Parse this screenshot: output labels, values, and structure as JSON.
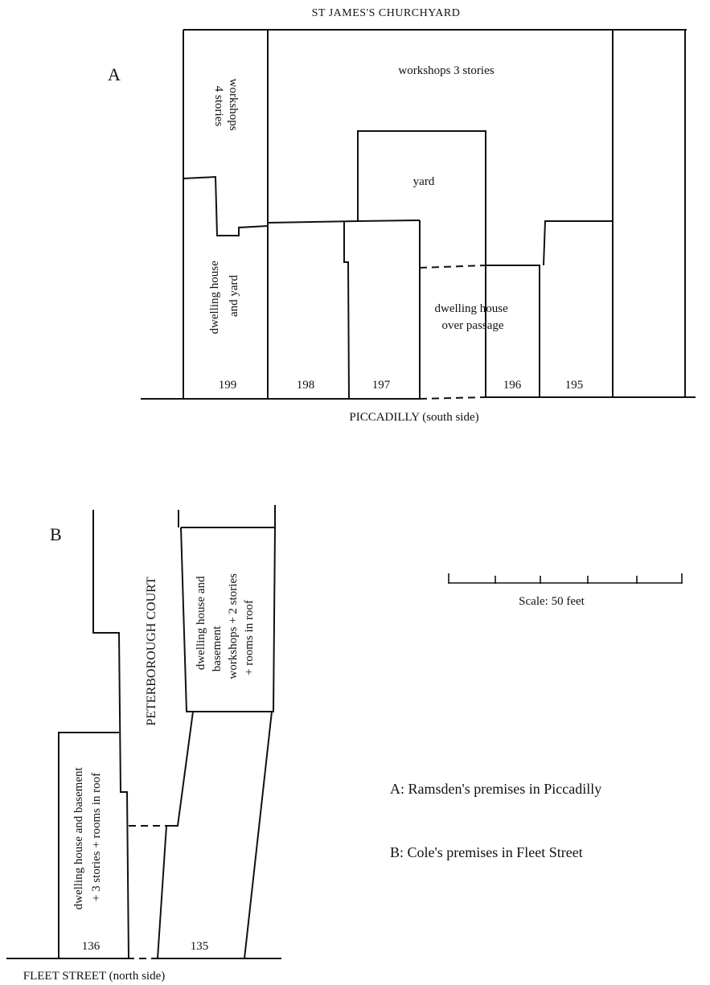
{
  "plan_a": {
    "panel_letter": "A",
    "north_street": "ST JAMES'S CHURCHYARD",
    "south_street": "PICCADILLY (south side)",
    "workshops_4": [
      "workshops",
      "4 stories"
    ],
    "workshops_3": "workshops 3 stories",
    "yard": "yard",
    "dwelling_and_yard": [
      "dwelling house",
      "and yard"
    ],
    "dwelling_over_passage": [
      "dwelling house",
      "over passage"
    ],
    "numbers": [
      "199",
      "198",
      "197",
      "196",
      "195"
    ]
  },
  "plan_b": {
    "panel_letter": "B",
    "court": "PETERBOROUGH COURT",
    "street": "FLEET STREET (north side)",
    "house_136": [
      "dwelling house and basement",
      "+ 3 stories + rooms in roof"
    ],
    "house_135": [
      "dwelling house and",
      "basement",
      "workshops + 2 stories",
      "+ rooms in roof"
    ],
    "numbers": [
      "136",
      "135"
    ]
  },
  "scale": {
    "label": "Scale:  50 feet"
  },
  "legend": {
    "a": "A:  Ramsden's premises in Piccadilly",
    "b": "B:  Cole's premises in Fleet Street"
  }
}
